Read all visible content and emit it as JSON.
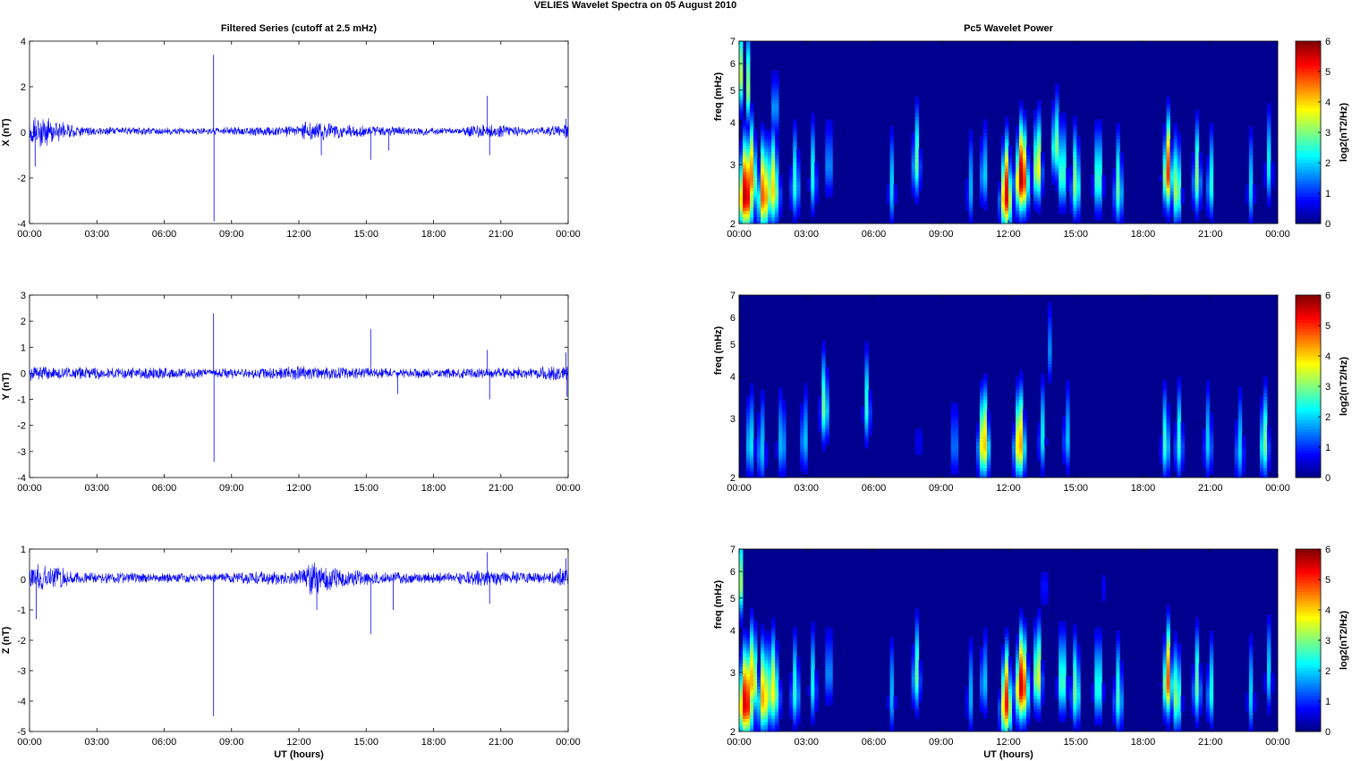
{
  "figure": {
    "title": "VELIES Wavelet Spectra on 05 August    2010",
    "left_column_title": "Filtered Series (cutoff at 2.5 mHz)",
    "right_column_title": "Pc5 Wavelet Power",
    "x_label": "UT (hours)",
    "x_tick_labels": [
      "00:00",
      "03:00",
      "06:00",
      "09:00",
      "12:00",
      "15:00",
      "18:00",
      "21:00",
      "00:00"
    ],
    "freq_label": "freq (mHz)",
    "freq_ticks": [
      "2",
      "3",
      "4",
      "5",
      "6",
      "7"
    ],
    "colorbar_label": "log2(nT2/Hz)",
    "colorbar_ticks": [
      "0",
      "1",
      "2",
      "3",
      "4",
      "5",
      "6"
    ],
    "series_color": "#0000ff",
    "background_color": "#00008f"
  },
  "chart_data": [
    {
      "type": "line",
      "component": "X",
      "ylabel": "X (nT)",
      "ylim": [
        -4,
        4
      ],
      "yticks": [
        -4,
        -2,
        0,
        2,
        4
      ],
      "xlim_hours": [
        0,
        24
      ],
      "baseline": 0.05,
      "envelope": [
        [
          0,
          0.5
        ],
        [
          0.5,
          0.8
        ],
        [
          1,
          0.6
        ],
        [
          2,
          0.3
        ],
        [
          2.5,
          0.2
        ],
        [
          8,
          0.15
        ],
        [
          9,
          0.2
        ],
        [
          11,
          0.2
        ],
        [
          12,
          0.3
        ],
        [
          12.5,
          0.5
        ],
        [
          13,
          0.4
        ],
        [
          14,
          0.3
        ],
        [
          16,
          0.2
        ],
        [
          18,
          0.2
        ],
        [
          19,
          0.15
        ],
        [
          20,
          0.3
        ],
        [
          21,
          0.3
        ],
        [
          22,
          0.2
        ],
        [
          23,
          0.2
        ],
        [
          24,
          0.35
        ]
      ],
      "spikes": [
        [
          0.25,
          -1.5
        ],
        [
          8.2,
          3.4
        ],
        [
          8.22,
          -3.9
        ],
        [
          13,
          -1.0
        ],
        [
          15.2,
          -1.2
        ],
        [
          16,
          -0.8
        ],
        [
          20.4,
          1.6
        ],
        [
          20.5,
          -1.0
        ],
        [
          23.9,
          0.6
        ]
      ]
    },
    {
      "type": "line",
      "component": "Y",
      "ylabel": "Y (nT)",
      "ylim": [
        -4,
        3
      ],
      "yticks": [
        -4,
        -3,
        -2,
        -1,
        0,
        1,
        2,
        3
      ],
      "xlim_hours": [
        0,
        24
      ],
      "baseline": 0.0,
      "envelope": [
        [
          0,
          0.3
        ],
        [
          1,
          0.25
        ],
        [
          4,
          0.25
        ],
        [
          8,
          0.2
        ],
        [
          10,
          0.2
        ],
        [
          12,
          0.3
        ],
        [
          13,
          0.25
        ],
        [
          16,
          0.2
        ],
        [
          20,
          0.2
        ],
        [
          22,
          0.25
        ],
        [
          24,
          0.3
        ]
      ],
      "spikes": [
        [
          8.2,
          2.3
        ],
        [
          8.22,
          -3.4
        ],
        [
          15.2,
          1.7
        ],
        [
          16.4,
          -0.8
        ],
        [
          20.4,
          0.9
        ],
        [
          20.5,
          -1.0
        ],
        [
          23.9,
          0.8
        ],
        [
          23.95,
          -0.9
        ]
      ]
    },
    {
      "type": "line",
      "component": "Z",
      "ylabel": "Z (nT)",
      "ylim": [
        -5,
        1
      ],
      "yticks": [
        -5,
        -4,
        -3,
        -2,
        -1,
        0,
        1
      ],
      "xlim_hours": [
        0,
        24
      ],
      "baseline": 0.05,
      "envelope": [
        [
          0,
          0.5
        ],
        [
          0.5,
          0.45
        ],
        [
          1.5,
          0.35
        ],
        [
          2,
          0.2
        ],
        [
          8,
          0.15
        ],
        [
          9,
          0.2
        ],
        [
          12,
          0.25
        ],
        [
          12.5,
          0.6
        ],
        [
          13,
          0.5
        ],
        [
          14,
          0.3
        ],
        [
          16,
          0.2
        ],
        [
          19,
          0.2
        ],
        [
          20,
          0.3
        ],
        [
          21,
          0.25
        ],
        [
          23,
          0.2
        ],
        [
          24,
          0.4
        ]
      ],
      "spikes": [
        [
          0.3,
          -1.3
        ],
        [
          8.2,
          -4.5
        ],
        [
          8.22,
          0.2
        ],
        [
          12.8,
          -1.0
        ],
        [
          15.2,
          -1.8
        ],
        [
          16.2,
          -1.0
        ],
        [
          20.4,
          0.9
        ],
        [
          20.5,
          -0.8
        ],
        [
          23.9,
          0.7
        ]
      ]
    },
    {
      "type": "heatmap",
      "component": "X",
      "xlim_hours": [
        0,
        24
      ],
      "ylim_mhz": [
        2,
        7
      ],
      "yscale": "log",
      "clim": [
        0,
        6
      ],
      "blobs": [
        [
          0.3,
          2.4,
          0.35,
          5.8
        ],
        [
          0.55,
          2.7,
          0.25,
          4.5
        ],
        [
          1.1,
          2.4,
          0.25,
          5.0
        ],
        [
          1.5,
          2.5,
          0.3,
          4.0
        ],
        [
          0.1,
          5.5,
          0.08,
          3.5
        ],
        [
          0.4,
          5.0,
          0.08,
          3.0
        ],
        [
          1.6,
          4.5,
          0.1,
          3.0
        ],
        [
          2.5,
          2.6,
          0.2,
          2.5
        ],
        [
          3.3,
          2.7,
          0.15,
          2.4
        ],
        [
          4.0,
          3.0,
          0.15,
          2.0
        ],
        [
          6.8,
          2.5,
          0.15,
          2.0
        ],
        [
          7.9,
          3.0,
          0.18,
          2.8
        ],
        [
          10.3,
          2.5,
          0.15,
          1.8
        ],
        [
          10.9,
          2.8,
          0.15,
          2.3
        ],
        [
          11.9,
          2.4,
          0.25,
          5.5
        ],
        [
          12.6,
          2.7,
          0.3,
          5.8
        ],
        [
          13.3,
          2.9,
          0.2,
          4.0
        ],
        [
          14.1,
          3.4,
          0.15,
          3.5
        ],
        [
          14.4,
          2.8,
          0.2,
          3.0
        ],
        [
          15.0,
          2.6,
          0.2,
          3.2
        ],
        [
          16.0,
          2.7,
          0.2,
          3.0
        ],
        [
          16.9,
          2.5,
          0.2,
          2.8
        ],
        [
          19.1,
          2.8,
          0.2,
          5.0
        ],
        [
          19.5,
          2.5,
          0.2,
          3.5
        ],
        [
          20.4,
          2.7,
          0.18,
          3.0
        ],
        [
          21.0,
          2.6,
          0.15,
          2.6
        ],
        [
          22.8,
          2.5,
          0.15,
          2.0
        ],
        [
          23.6,
          2.9,
          0.15,
          2.2
        ]
      ]
    },
    {
      "type": "heatmap",
      "component": "Y",
      "xlim_hours": [
        0,
        24
      ],
      "ylim_mhz": [
        2,
        7
      ],
      "yscale": "log",
      "clim": [
        0,
        6
      ],
      "blobs": [
        [
          0.5,
          2.5,
          0.2,
          2.3
        ],
        [
          1.0,
          2.4,
          0.2,
          2.0
        ],
        [
          1.9,
          2.5,
          0.2,
          2.0
        ],
        [
          2.9,
          2.6,
          0.15,
          2.2
        ],
        [
          3.8,
          3.2,
          0.18,
          3.0
        ],
        [
          5.7,
          3.2,
          0.15,
          2.5
        ],
        [
          8.0,
          2.6,
          0.1,
          1.2
        ],
        [
          9.6,
          2.5,
          0.15,
          1.8
        ],
        [
          10.9,
          2.5,
          0.25,
          4.3
        ],
        [
          12.5,
          2.5,
          0.25,
          4.5
        ],
        [
          13.5,
          2.6,
          0.15,
          2.2
        ],
        [
          13.8,
          4.8,
          0.08,
          2.0
        ],
        [
          14.6,
          2.6,
          0.15,
          2.0
        ],
        [
          19.0,
          2.5,
          0.18,
          2.7
        ],
        [
          19.6,
          2.5,
          0.18,
          2.5
        ],
        [
          20.9,
          2.5,
          0.2,
          2.0
        ],
        [
          22.3,
          2.4,
          0.2,
          2.0
        ],
        [
          23.4,
          2.5,
          0.2,
          3.0
        ]
      ]
    },
    {
      "type": "heatmap",
      "component": "Z",
      "xlim_hours": [
        0,
        24
      ],
      "ylim_mhz": [
        2,
        7
      ],
      "yscale": "log",
      "clim": [
        0,
        6
      ],
      "blobs": [
        [
          0.3,
          2.4,
          0.35,
          5.6
        ],
        [
          0.6,
          2.8,
          0.25,
          4.3
        ],
        [
          1.1,
          2.5,
          0.25,
          4.5
        ],
        [
          1.5,
          2.6,
          0.3,
          3.8
        ],
        [
          0.1,
          5.5,
          0.08,
          3.3
        ],
        [
          2.5,
          2.6,
          0.2,
          2.5
        ],
        [
          3.3,
          2.7,
          0.15,
          2.3
        ],
        [
          4.0,
          3.0,
          0.15,
          2.0
        ],
        [
          6.8,
          2.5,
          0.15,
          1.8
        ],
        [
          7.9,
          2.9,
          0.18,
          2.8
        ],
        [
          10.3,
          2.5,
          0.15,
          1.8
        ],
        [
          10.9,
          2.8,
          0.15,
          2.2
        ],
        [
          11.9,
          2.4,
          0.25,
          5.2
        ],
        [
          12.6,
          2.7,
          0.3,
          5.6
        ],
        [
          13.3,
          2.9,
          0.2,
          3.8
        ],
        [
          13.6,
          5.5,
          0.08,
          2.2
        ],
        [
          14.4,
          2.8,
          0.2,
          3.0
        ],
        [
          15.0,
          2.6,
          0.2,
          3.0
        ],
        [
          16.0,
          2.7,
          0.2,
          2.8
        ],
        [
          16.3,
          5.5,
          0.06,
          2.0
        ],
        [
          16.9,
          2.5,
          0.2,
          2.6
        ],
        [
          19.1,
          2.8,
          0.2,
          4.8
        ],
        [
          19.5,
          2.5,
          0.2,
          3.3
        ],
        [
          20.4,
          2.7,
          0.18,
          2.8
        ],
        [
          21.0,
          2.6,
          0.15,
          2.5
        ],
        [
          22.8,
          2.5,
          0.15,
          2.0
        ],
        [
          23.6,
          2.9,
          0.15,
          2.0
        ]
      ]
    }
  ]
}
